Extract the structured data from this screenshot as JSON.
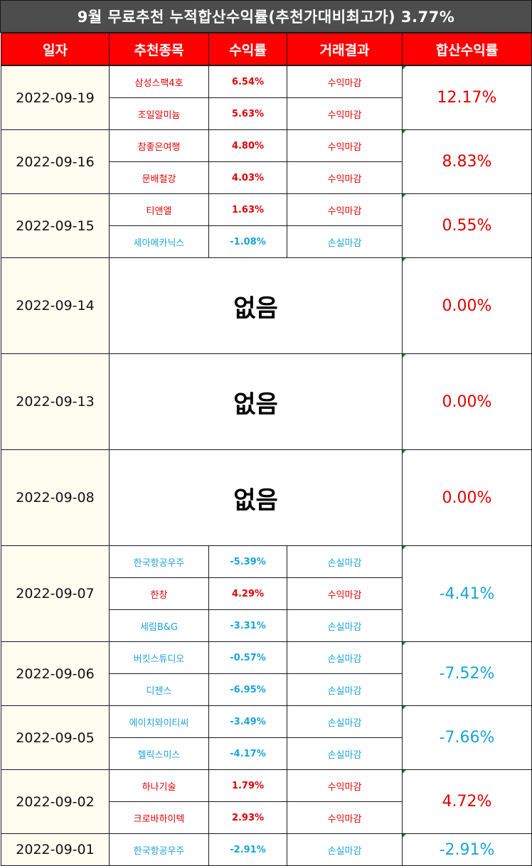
{
  "title": "9월 무료추천 누적합산수익률(추천가대비최고가) 3.77%",
  "headers": [
    "일자",
    "추천종목",
    "수익률",
    "거래결과",
    "합산수익률"
  ],
  "colors": {
    "header_bg": "#ff0000",
    "title_bg": "#4d4d4d",
    "profit": "#e00000",
    "loss": "#1aa3d9",
    "date_bg": "#fffdf0"
  },
  "groups": [
    {
      "date": "2022-09-19",
      "cum": "12.17%",
      "cum_sign": "pos",
      "rows": [
        {
          "stock": "삼성스팩4호",
          "ret": "6.54%",
          "result": "수익마감",
          "sign": "pos"
        },
        {
          "stock": "조일알미늄",
          "ret": "5.63%",
          "result": "수익마감",
          "sign": "pos"
        }
      ]
    },
    {
      "date": "2022-09-16",
      "cum": "8.83%",
      "cum_sign": "pos",
      "rows": [
        {
          "stock": "참좋은여행",
          "ret": "4.80%",
          "result": "수익마감",
          "sign": "pos"
        },
        {
          "stock": "문배철강",
          "ret": "4.03%",
          "result": "수익마감",
          "sign": "pos"
        }
      ]
    },
    {
      "date": "2022-09-15",
      "cum": "0.55%",
      "cum_sign": "pos",
      "rows": [
        {
          "stock": "티앤엘",
          "ret": "1.63%",
          "result": "수익마감",
          "sign": "pos"
        },
        {
          "stock": "세아메카닉스",
          "ret": "-1.08%",
          "result": "손실마감",
          "sign": "neg"
        }
      ]
    },
    {
      "date": "2022-09-14",
      "cum": "0.00%",
      "none_label": "없음"
    },
    {
      "date": "2022-09-13",
      "cum": "0.00%",
      "none_label": "없음"
    },
    {
      "date": "2022-09-08",
      "cum": "0.00%",
      "none_label": "없음"
    },
    {
      "date": "2022-09-07",
      "cum": "-4.41%",
      "cum_sign": "neg",
      "rows": [
        {
          "stock": "한국항공우주",
          "ret": "-5.39%",
          "result": "손실마감",
          "sign": "neg"
        },
        {
          "stock": "한창",
          "ret": "4.29%",
          "result": "수익마감",
          "sign": "pos"
        },
        {
          "stock": "세림B&G",
          "ret": "-3.31%",
          "result": "손실마감",
          "sign": "neg"
        }
      ]
    },
    {
      "date": "2022-09-06",
      "cum": "-7.52%",
      "cum_sign": "neg",
      "rows": [
        {
          "stock": "버킷스튜디오",
          "ret": "-0.57%",
          "result": "손실마감",
          "sign": "neg"
        },
        {
          "stock": "디젠스",
          "ret": "-6.95%",
          "result": "손실마감",
          "sign": "neg"
        }
      ]
    },
    {
      "date": "2022-09-05",
      "cum": "-7.66%",
      "cum_sign": "neg",
      "rows": [
        {
          "stock": "에이치와이티씨",
          "ret": "-3.49%",
          "result": "손실마감",
          "sign": "neg"
        },
        {
          "stock": "헬릭스미스",
          "ret": "-4.17%",
          "result": "손실마감",
          "sign": "neg"
        }
      ]
    },
    {
      "date": "2022-09-02",
      "cum": "4.72%",
      "cum_sign": "pos",
      "rows": [
        {
          "stock": "하나기술",
          "ret": "1.79%",
          "result": "수익마감",
          "sign": "pos"
        },
        {
          "stock": "크로바하이텍",
          "ret": "2.93%",
          "result": "수익마감",
          "sign": "pos"
        }
      ]
    },
    {
      "date": "2022-09-01",
      "cum": "-2.91%",
      "cum_sign": "neg",
      "rows": [
        {
          "stock": "한국항공우주",
          "ret": "-2.91%",
          "result": "손실마감",
          "sign": "neg"
        }
      ]
    }
  ]
}
